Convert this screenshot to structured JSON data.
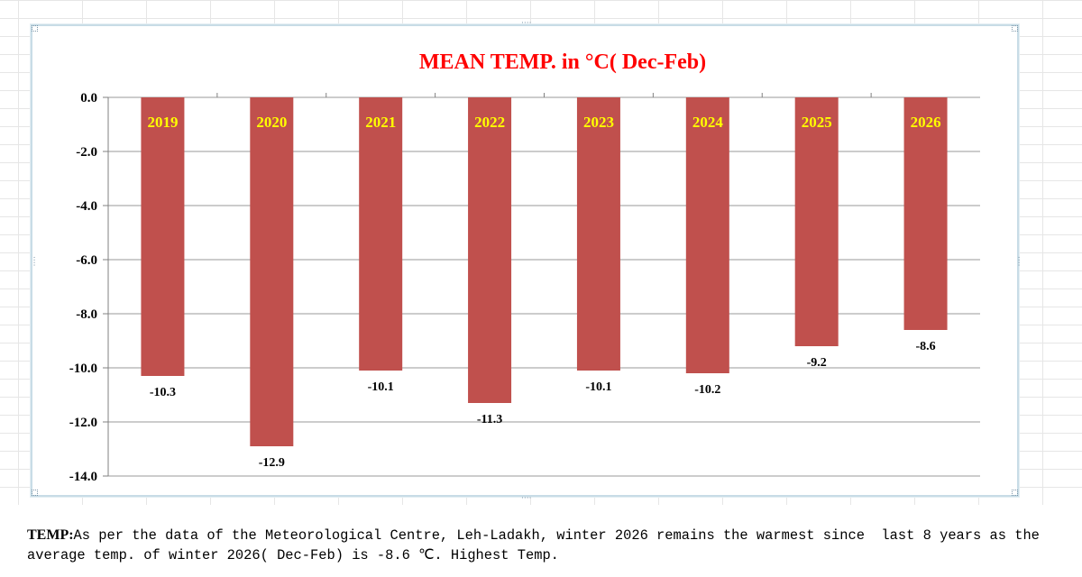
{
  "chart_data": {
    "type": "bar",
    "title": "MEAN TEMP. in °C( Dec-Feb)",
    "categories": [
      "2019",
      "2020",
      "2021",
      "2022",
      "2023",
      "2024",
      "2025",
      "2026"
    ],
    "values": [
      -10.3,
      -12.9,
      -10.1,
      -11.3,
      -10.1,
      -10.2,
      -9.2,
      -8.6
    ],
    "value_labels": [
      "-10.3",
      "-12.9",
      "-10.1",
      "-11.3",
      "-10.1",
      "-10.2",
      "-9.2",
      "-8.6"
    ],
    "ylim": [
      -14,
      0
    ],
    "yticks": [
      "0.0",
      "-2.0",
      "-4.0",
      "-6.0",
      "-8.0",
      "-10.0",
      "-12.0",
      "-14.0"
    ],
    "ytick_values": [
      0,
      -2,
      -4,
      -6,
      -8,
      -10,
      -12,
      -14
    ],
    "grid": true,
    "legend": "none",
    "xlabel": "",
    "ylabel": "",
    "colors": {
      "bar": "#c0504d",
      "title": "#ff0000",
      "category_label": "#ffff00",
      "grid": "#9a9a9a"
    }
  },
  "caption": {
    "lead": "TEMP:",
    "text": "As per the data of the Meteorological Centre, Leh-Ladakh, winter 2026 remains the warmest since  last 8 years as the average temp. of winter 2026( Dec-Feb) is -8.6 ℃. Highest Temp."
  }
}
